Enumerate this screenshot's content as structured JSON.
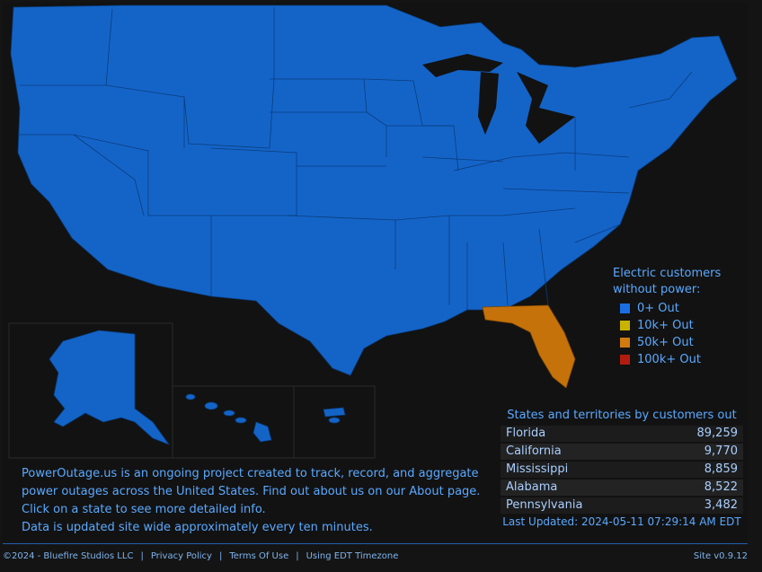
{
  "legend": {
    "title_line1": "Electric customers",
    "title_line2": "without power:",
    "items": [
      {
        "label": "0+ Out",
        "color": "#1a6ee0"
      },
      {
        "label": "10k+ Out",
        "color": "#c8b400"
      },
      {
        "label": "50k+ Out",
        "color": "#d07a10"
      },
      {
        "label": "100k+ Out",
        "color": "#b21c0e"
      }
    ]
  },
  "table": {
    "title": "States and territories by customers out",
    "rows": [
      {
        "state": "Florida",
        "count": "89,259"
      },
      {
        "state": "California",
        "count": "9,770"
      },
      {
        "state": "Mississippi",
        "count": "8,859"
      },
      {
        "state": "Alabama",
        "count": "8,522"
      },
      {
        "state": "Pennsylvania",
        "count": "3,482"
      }
    ],
    "last_updated": "Last Updated: 2024-05-11 07:29:14 AM EDT"
  },
  "about": {
    "line1": "PowerOutage.us is an ongoing project created to track, record, and aggregate",
    "line2": "power outages across the United States. Find out about us on our About page.",
    "line3": "Click on a state to see more detailed info.",
    "line4": "Data is updated site wide approximately every ten minutes."
  },
  "footer": {
    "copyright": "©2024 - Bluefire Studios LLC",
    "privacy": "Privacy Policy",
    "terms": "Terms Of Use",
    "timezone": "Using EDT Timezone",
    "version": "Site v0.9.12"
  },
  "map": {
    "highlighted_state": "Florida",
    "base_color": "#1464c8",
    "highlight_color": "#c6720a"
  }
}
